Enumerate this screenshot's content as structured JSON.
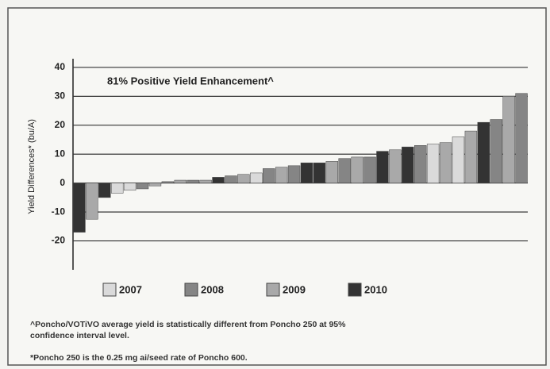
{
  "chart_data": {
    "type": "bar",
    "annotation": "81% Positive Yield Enhancement^",
    "y_label": "Yield Differences* (bu/A)",
    "footnotes": [
      "^Poncho/VOTiVO average yield is statistically different from Poncho 250 at 95% confidence interval level.",
      "*Poncho 250 is the 0.25 mg ai/seed rate of Poncho 600."
    ],
    "categories": [
      null,
      null,
      null,
      null,
      null,
      null,
      null,
      null,
      null,
      null,
      null,
      null,
      null,
      null,
      null,
      null,
      null,
      null,
      null,
      null,
      null,
      null,
      null,
      null,
      null,
      null,
      null,
      null,
      null,
      null,
      null,
      null,
      null,
      null,
      null,
      null
    ],
    "series": [
      {
        "name": "2007",
        "color": "#dadada",
        "values": [
          null,
          null,
          null,
          -3.5,
          -2.5,
          null,
          null,
          null,
          null,
          null,
          null,
          null,
          null,
          null,
          3.5,
          null,
          null,
          null,
          null,
          null,
          null,
          null,
          null,
          null,
          null,
          null,
          null,
          null,
          13.5,
          null,
          16,
          null,
          null,
          null,
          null,
          null
        ]
      },
      {
        "name": "2008",
        "color": "#858585",
        "values": [
          null,
          null,
          null,
          null,
          null,
          -2,
          null,
          0.5,
          null,
          1,
          null,
          null,
          2.5,
          null,
          null,
          5,
          null,
          6,
          null,
          null,
          null,
          8.5,
          null,
          9,
          null,
          null,
          null,
          13,
          null,
          null,
          null,
          null,
          null,
          22,
          null,
          31
        ]
      },
      {
        "name": "2009",
        "color": "#a9a9a9",
        "values": [
          null,
          -12.5,
          null,
          null,
          null,
          null,
          -1,
          null,
          1,
          null,
          1,
          null,
          null,
          3,
          null,
          null,
          5.5,
          null,
          null,
          null,
          7.5,
          null,
          9,
          null,
          null,
          11.5,
          null,
          null,
          null,
          14,
          null,
          18,
          null,
          null,
          30,
          null
        ]
      },
      {
        "name": "2010",
        "color": "#333333",
        "values": [
          -17,
          null,
          -5,
          null,
          null,
          null,
          null,
          null,
          null,
          null,
          null,
          2,
          null,
          null,
          null,
          null,
          null,
          null,
          7,
          7,
          null,
          null,
          null,
          null,
          11,
          null,
          12.5,
          null,
          null,
          null,
          null,
          null,
          21,
          null,
          null,
          null
        ]
      }
    ],
    "ylim": [
      -30,
      43
    ],
    "yticks": [
      -20,
      -10,
      0,
      10,
      20,
      30,
      40
    ],
    "grid": true
  }
}
